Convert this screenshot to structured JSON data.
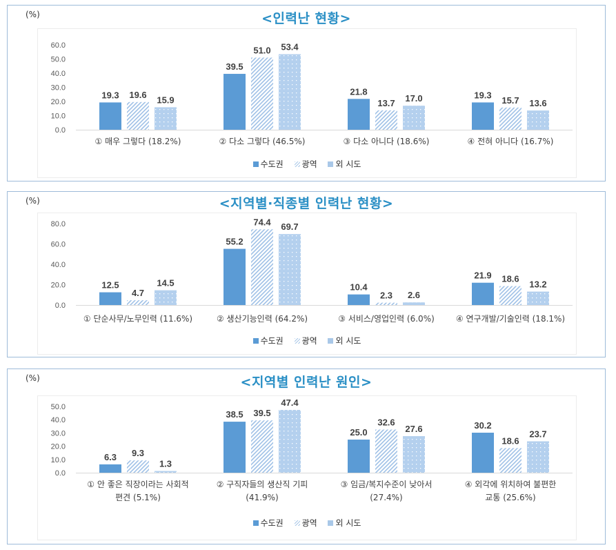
{
  "legend": {
    "series": [
      "수도권",
      "광역",
      "외 시도"
    ],
    "colors": {
      "solid": "#5b9bd5",
      "hatch": "#a9c8e8",
      "dots": "#b4d0ee"
    }
  },
  "unit_label": "(%)",
  "chart_data": [
    {
      "type": "bar",
      "title": "<인력난 현황>",
      "ylabel": "(%)",
      "ylim": [
        0,
        60
      ],
      "yticks": [
        "0.0",
        "10.0",
        "20.0",
        "30.0",
        "40.0",
        "50.0",
        "60.0"
      ],
      "categories": [
        "① 매우 그렇다 (18.2%)",
        "② 다소 그렇다 (46.5%)",
        "③ 다소 아니다 (18.6%)",
        "④ 전혀 아니다 (16.7%)"
      ],
      "series": [
        {
          "name": "수도권",
          "values": [
            19.3,
            39.5,
            21.8,
            19.3
          ]
        },
        {
          "name": "광역",
          "values": [
            19.6,
            51.0,
            13.7,
            15.7
          ]
        },
        {
          "name": "외 시도",
          "values": [
            15.9,
            53.4,
            17.0,
            13.6
          ]
        }
      ],
      "legend_position": "bottom"
    },
    {
      "type": "bar",
      "title": "<지역별·직종별 인력난 현황>",
      "ylabel": "(%)",
      "ylim": [
        0,
        80
      ],
      "yticks": [
        "0.0",
        "20.0",
        "40.0",
        "60.0",
        "80.0"
      ],
      "categories": [
        "① 단순사무/노무인력 (11.6%)",
        "② 생산기능인력 (64.2%)",
        "③ 서비스/영업인력 (6.0%)",
        "④ 연구개발/기술인력 (18.1%)"
      ],
      "series": [
        {
          "name": "수도권",
          "values": [
            12.5,
            55.2,
            10.4,
            21.9
          ]
        },
        {
          "name": "광역",
          "values": [
            4.7,
            74.4,
            2.3,
            18.6
          ]
        },
        {
          "name": "외 시도",
          "values": [
            14.5,
            69.7,
            2.6,
            13.2
          ]
        }
      ],
      "legend_position": "bottom"
    },
    {
      "type": "bar",
      "title": "<지역별 인력난 원인>",
      "ylabel": "(%)",
      "ylim": [
        0,
        50
      ],
      "yticks": [
        "0.0",
        "10.0",
        "20.0",
        "30.0",
        "40.0",
        "50.0"
      ],
      "categories": [
        "① 안 좋은 직장이라는 사회적 편견 (5.1%)",
        "② 구직자들의 생산직 기피 (41.9%)",
        "③ 임금/복지수준이 낮아서 (27.4%)",
        "④ 외각에 위치하여 불편한 교통 (25.6%)"
      ],
      "category_lines": [
        [
          "① 안 좋은 직장이라는 사회적",
          "편견 (5.1%)"
        ],
        [
          "② 구직자들의 생산직 기피",
          "(41.9%)"
        ],
        [
          "③ 임금/복지수준이 낮아서",
          "(27.4%)"
        ],
        [
          "④ 외각에 위치하여 불편한",
          "교통 (25.6%)"
        ]
      ],
      "series": [
        {
          "name": "수도권",
          "values": [
            6.3,
            38.5,
            25.0,
            30.2
          ]
        },
        {
          "name": "광역",
          "values": [
            9.3,
            39.5,
            32.6,
            18.6
          ]
        },
        {
          "name": "외 시도",
          "values": [
            1.3,
            47.4,
            27.6,
            23.7
          ]
        }
      ],
      "legend_position": "bottom"
    }
  ]
}
